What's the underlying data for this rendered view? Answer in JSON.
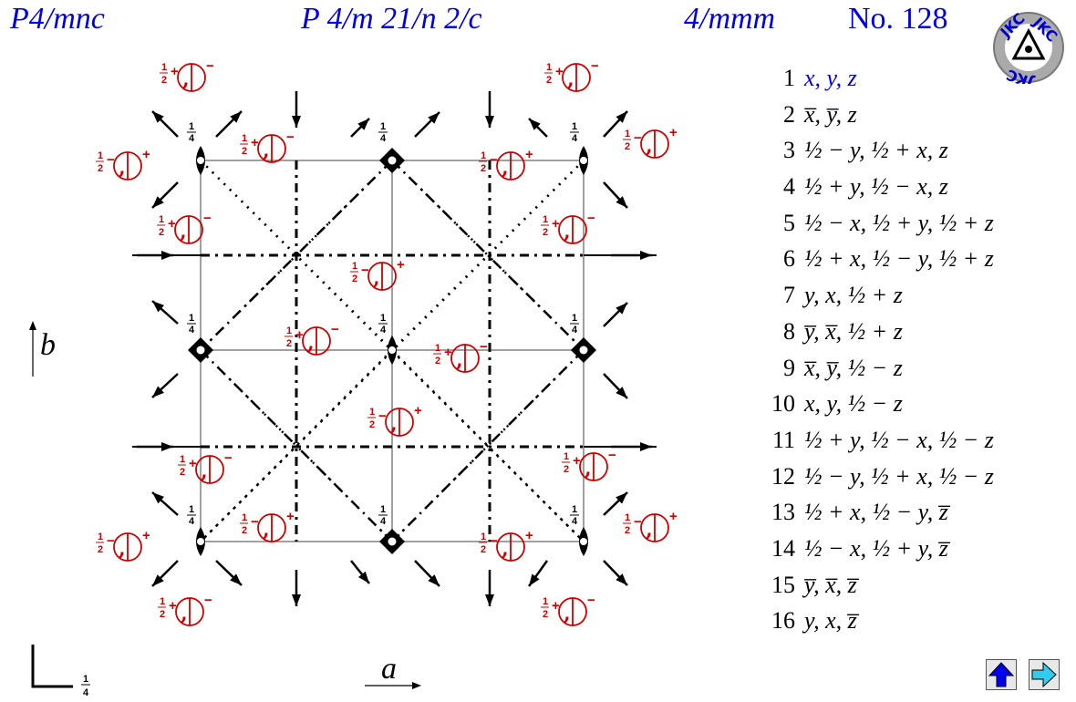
{
  "header": {
    "hm_short": "P4/mnc",
    "hm_full": "P 4/m 21/n 2/c",
    "point_group": "4/mmm",
    "number_label": "No. 128"
  },
  "logo": {
    "icon": "jkc-logo-icon",
    "text": "JKC",
    "colors": {
      "ring": "#999999",
      "bg": "#aaaaaa",
      "text": "#0000cc",
      "center": "#ffffff"
    }
  },
  "axes": {
    "b": "b",
    "a": "a",
    "height_marker": "1/4"
  },
  "colors": {
    "symmetry_black": "#000000",
    "equivalent_positions": "#cc0000",
    "coordinates_first": "#0000e0",
    "grid": "#808080"
  },
  "diagram": {
    "height_fraction": "1/4",
    "signs": [
      "+",
      "−"
    ],
    "half": "1/2"
  },
  "coordinates": [
    {
      "n": "1",
      "expr": "x, y, z"
    },
    {
      "n": "2",
      "expr": "x̅, y̅, z"
    },
    {
      "n": "3",
      "expr": "½ − y, ½ + x, z"
    },
    {
      "n": "4",
      "expr": "½ + y, ½ − x, z"
    },
    {
      "n": "5",
      "expr": "½ − x, ½ + y, ½ + z"
    },
    {
      "n": "6",
      "expr": "½ + x, ½ − y, ½ + z"
    },
    {
      "n": "7",
      "expr": "y, x, ½ + z"
    },
    {
      "n": "8",
      "expr": "y̅, x̅, ½ + z"
    },
    {
      "n": "9",
      "expr": "x̅, y̅, ½ − z"
    },
    {
      "n": "10",
      "expr": "x, y, ½ − z"
    },
    {
      "n": "11",
      "expr": "½ + y, ½ − x, ½ − z"
    },
    {
      "n": "12",
      "expr": "½ − y, ½ + x, ½ − z"
    },
    {
      "n": "13",
      "expr": "½ + x, ½ − y, z̅"
    },
    {
      "n": "14",
      "expr": "½ − x, ½ + y, z̅"
    },
    {
      "n": "15",
      "expr": "y̅, x̅, z̅"
    },
    {
      "n": "16",
      "expr": "y, x, z̅"
    }
  ],
  "nav": {
    "up_icon": "up-arrow-icon",
    "next_icon": "right-arrow-icon",
    "up_color": "#0000ee",
    "next_color": "#33ccee"
  }
}
